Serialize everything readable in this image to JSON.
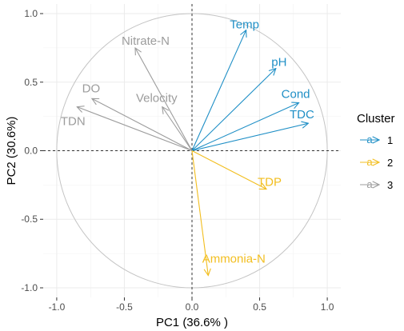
{
  "chart_data": {
    "type": "scatter",
    "subtype": "pca-correlation-circle",
    "xlabel": "PC1 (36.6% )",
    "ylabel": "PC2 (30.6%)",
    "xlim": [
      -1.1,
      1.1
    ],
    "ylim": [
      -1.07,
      1.07
    ],
    "xticks": [
      -1.0,
      -0.5,
      0.0,
      0.5,
      1.0
    ],
    "yticks": [
      -1.0,
      -0.5,
      0.0,
      0.5,
      1.0
    ],
    "xtick_labels": [
      "-1.0",
      "-0.5",
      "0.0",
      "0.5",
      "1.0"
    ],
    "ytick_labels": [
      "-1.0",
      "-0.5",
      "0.0",
      "0.5",
      "1.0"
    ],
    "grid": true,
    "unit_circle": true,
    "zero_lines": true,
    "legend": {
      "title": "Cluster",
      "placement": "right",
      "key_glyph": "a",
      "entries": [
        {
          "label": "1",
          "color": "#1f8fc6"
        },
        {
          "label": "2",
          "color": "#f2be1f"
        },
        {
          "label": "3",
          "color": "#9c9c9c"
        }
      ]
    },
    "vectors": [
      {
        "name": "Temp",
        "x": 0.4,
        "y": 0.88,
        "cluster": "1"
      },
      {
        "name": "pH",
        "x": 0.62,
        "y": 0.6,
        "cluster": "1"
      },
      {
        "name": "Cond",
        "x": 0.79,
        "y": 0.35,
        "cluster": "1"
      },
      {
        "name": "TDC",
        "x": 0.86,
        "y": 0.2,
        "cluster": "1"
      },
      {
        "name": "TDP",
        "x": 0.55,
        "y": -0.28,
        "cluster": "2"
      },
      {
        "name": "Ammonia-N",
        "x": 0.12,
        "y": -0.91,
        "cluster": "2"
      },
      {
        "name": "Nitrate-N",
        "x": -0.42,
        "y": 0.75,
        "cluster": "3"
      },
      {
        "name": "Velocity",
        "x": -0.22,
        "y": 0.32,
        "cluster": "3"
      },
      {
        "name": "DO",
        "x": -0.74,
        "y": 0.38,
        "cluster": "3"
      },
      {
        "name": "TDN",
        "x": -0.85,
        "y": 0.32,
        "cluster": "3"
      }
    ]
  }
}
